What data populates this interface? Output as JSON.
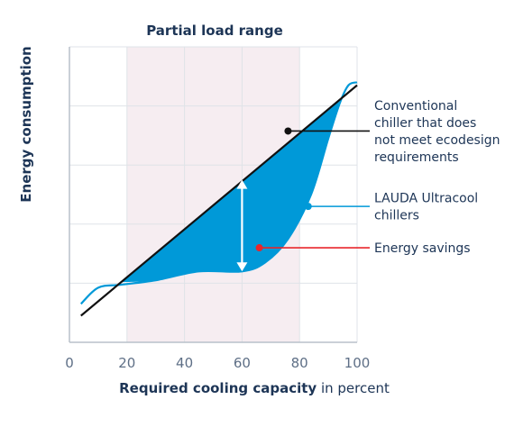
{
  "chart_data": {
    "type": "area",
    "title": "Partial load range",
    "xlabel_bold": "Required cooling capacity",
    "xlabel_rest": " in percent",
    "ylabel": "Energy consumption",
    "xlim": [
      0,
      100
    ],
    "ylim": [
      0,
      100
    ],
    "x_ticks": [
      0,
      20,
      40,
      60,
      80,
      100
    ],
    "grid": true,
    "partial_load_range": [
      20,
      80
    ],
    "series": [
      {
        "name": "Conventional chiller that does not meet ecodesign requirements",
        "style": "line",
        "color": "#111111",
        "x": [
          4,
          100
        ],
        "y": [
          9,
          87
        ]
      },
      {
        "name": "LAUDA Ultracool chillers",
        "style": "curve",
        "color": "#0099d8",
        "x": [
          4,
          10,
          18,
          30,
          45,
          60,
          68,
          76,
          84,
          90,
          94,
          97,
          100
        ],
        "y": [
          13,
          18.5,
          19.5,
          21,
          24,
          24,
          27,
          35,
          50,
          69,
          81,
          87,
          88
        ]
      }
    ],
    "savings_fill": {
      "color": "#0099d8",
      "between": [
        18,
        94
      ]
    },
    "arrow": {
      "x": 60,
      "y_top": 55,
      "y_bottom": 24,
      "color": "#ffffff"
    },
    "annotations": [
      {
        "lines": [
          "Conventional",
          "chiller that does",
          "not meet ecodesign",
          "requirements"
        ],
        "point": [
          76,
          71.5
        ],
        "dot_color": "#111111",
        "line_color": "#111111"
      },
      {
        "lines": [
          "LAUDA Ultracool",
          "chillers"
        ],
        "point": [
          83,
          46
        ],
        "dot_color": "#0099d8",
        "line_color": "#0099d8"
      },
      {
        "lines": [
          "Energy savings"
        ],
        "point": [
          66,
          32
        ],
        "dot_color": "#e8262b",
        "line_color": "#e8262b"
      }
    ],
    "colors": {
      "band": "#f6edf1",
      "grid": "#dfe3e8",
      "axis": "#b8c0ca",
      "text": "#1d3556",
      "tick": "#5e6f86"
    }
  }
}
